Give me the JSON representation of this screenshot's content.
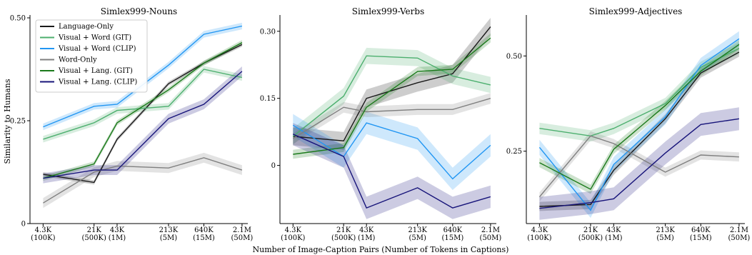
{
  "chart_data": {
    "type": "line",
    "xlabel": "Number of Image-Caption Pairs (Number of Tokens in Captions)",
    "ylabel": "Similarity to Humans",
    "x_tick_labels": [
      {
        "top": "4.3K",
        "bottom": "(100K)"
      },
      {
        "top": "21K",
        "bottom": "(500K)"
      },
      {
        "top": "43K",
        "bottom": "(1M)"
      },
      {
        "top": "213K",
        "bottom": "(5M)"
      },
      {
        "top": "640K",
        "bottom": "(15M)"
      },
      {
        "top": "2.1M",
        "bottom": "(50M)"
      }
    ],
    "x_scale": "log",
    "x_values": [
      4300,
      21000,
      43000,
      213000,
      640000,
      2100000
    ],
    "legend": {
      "placement": "top-left",
      "entries": [
        {
          "name": "Language-Only",
          "color": "#1a1a1a"
        },
        {
          "name": "Visual + Word (GIT)",
          "color": "#4caf6e"
        },
        {
          "name": "Visual + Word (CLIP)",
          "color": "#2196f3"
        },
        {
          "name": "Word-Only",
          "color": "#7f7f7f"
        },
        {
          "name": "Visual + Lang. (GIT)",
          "color": "#1b7a1b"
        },
        {
          "name": "Visual + Lang. (CLIP)",
          "color": "#17147a"
        }
      ]
    },
    "panels": [
      {
        "title": "Simlex999-Nouns",
        "ylim": [
          0,
          0.5
        ],
        "yticks": [
          0,
          0.25,
          0.5
        ],
        "ytick_labels": [
          "0",
          "0.25",
          "0.50"
        ],
        "series": [
          {
            "name": "Language-Only",
            "color": "#1a1a1a",
            "band": 0.005,
            "values": [
              0.12,
              0.1,
              0.205,
              0.34,
              0.39,
              0.435
            ]
          },
          {
            "name": "Visual + Word (GIT)",
            "color": "#4caf6e",
            "band": 0.008,
            "values": [
              0.205,
              0.245,
              0.275,
              0.285,
              0.375,
              0.355
            ]
          },
          {
            "name": "Visual + Word (CLIP)",
            "color": "#2196f3",
            "band": 0.008,
            "values": [
              0.235,
              0.285,
              0.29,
              0.385,
              0.46,
              0.48
            ]
          },
          {
            "name": "Word-Only",
            "color": "#7f7f7f",
            "band": 0.012,
            "values": [
              0.05,
              0.125,
              0.14,
              0.135,
              0.16,
              0.13
            ]
          },
          {
            "name": "Visual + Lang. (GIT)",
            "color": "#1b7a1b",
            "band": 0.006,
            "values": [
              0.11,
              0.145,
              0.245,
              0.325,
              0.39,
              0.44
            ]
          },
          {
            "name": "Visual + Lang. (CLIP)",
            "color": "#17147a",
            "band": 0.012,
            "values": [
              0.11,
              0.13,
              0.13,
              0.255,
              0.29,
              0.37
            ]
          }
        ]
      },
      {
        "title": "Simlex999-Verbs",
        "ylim": [
          -0.13,
          0.33
        ],
        "yticks": [
          0,
          0.15,
          0.3
        ],
        "ytick_labels": [
          "0",
          "0.15",
          "0.30"
        ],
        "series": [
          {
            "name": "Language-Only",
            "color": "#1a1a1a",
            "band": 0.02,
            "values": [
              0.065,
              0.055,
              0.15,
              0.185,
              0.205,
              0.31
            ]
          },
          {
            "name": "Visual + Word (GIT)",
            "color": "#4caf6e",
            "band": 0.018,
            "values": [
              0.065,
              0.155,
              0.245,
              0.24,
              0.2,
              0.18
            ]
          },
          {
            "name": "Visual + Word (CLIP)",
            "color": "#2196f3",
            "band": 0.025,
            "values": [
              0.09,
              0.02,
              0.095,
              0.06,
              -0.03,
              0.045
            ]
          },
          {
            "name": "Word-Only",
            "color": "#7f7f7f",
            "band": 0.012,
            "values": [
              0.06,
              0.13,
              0.12,
              0.125,
              0.125,
              0.15
            ]
          },
          {
            "name": "Visual + Lang. (GIT)",
            "color": "#1b7a1b",
            "band": 0.01,
            "values": [
              0.025,
              0.04,
              0.13,
              0.21,
              0.215,
              0.285
            ]
          },
          {
            "name": "Visual + Lang. (CLIP)",
            "color": "#17147a",
            "band": 0.025,
            "values": [
              0.07,
              0.02,
              -0.095,
              -0.05,
              -0.095,
              -0.07
            ]
          }
        ]
      },
      {
        "title": "Simlex999-Adjectives",
        "ylim": [
          0.06,
          0.6
        ],
        "yticks": [
          0.25,
          0.5
        ],
        "ytick_labels": [
          "0.25",
          "0.50"
        ],
        "series": [
          {
            "name": "Language-Only",
            "color": "#1a1a1a",
            "band": 0.012,
            "values": [
              0.105,
              0.11,
              0.2,
              0.335,
              0.455,
              0.51
            ]
          },
          {
            "name": "Visual + Word (GIT)",
            "color": "#4caf6e",
            "band": 0.015,
            "values": [
              0.31,
              0.29,
              0.31,
              0.375,
              0.47,
              0.52
            ]
          },
          {
            "name": "Visual + Word (CLIP)",
            "color": "#2196f3",
            "band": 0.02,
            "values": [
              0.26,
              0.095,
              0.215,
              0.34,
              0.475,
              0.545
            ]
          },
          {
            "name": "Word-Only",
            "color": "#7f7f7f",
            "band": 0.012,
            "values": [
              0.13,
              0.29,
              0.27,
              0.195,
              0.24,
              0.235
            ]
          },
          {
            "name": "Visual + Lang. (GIT)",
            "color": "#1b7a1b",
            "band": 0.012,
            "values": [
              0.22,
              0.15,
              0.255,
              0.37,
              0.46,
              0.53
            ]
          },
          {
            "name": "Visual + Lang. (CLIP)",
            "color": "#17147a",
            "band": 0.03,
            "values": [
              0.1,
              0.115,
              0.125,
              0.245,
              0.32,
              0.335
            ]
          }
        ]
      }
    ]
  }
}
